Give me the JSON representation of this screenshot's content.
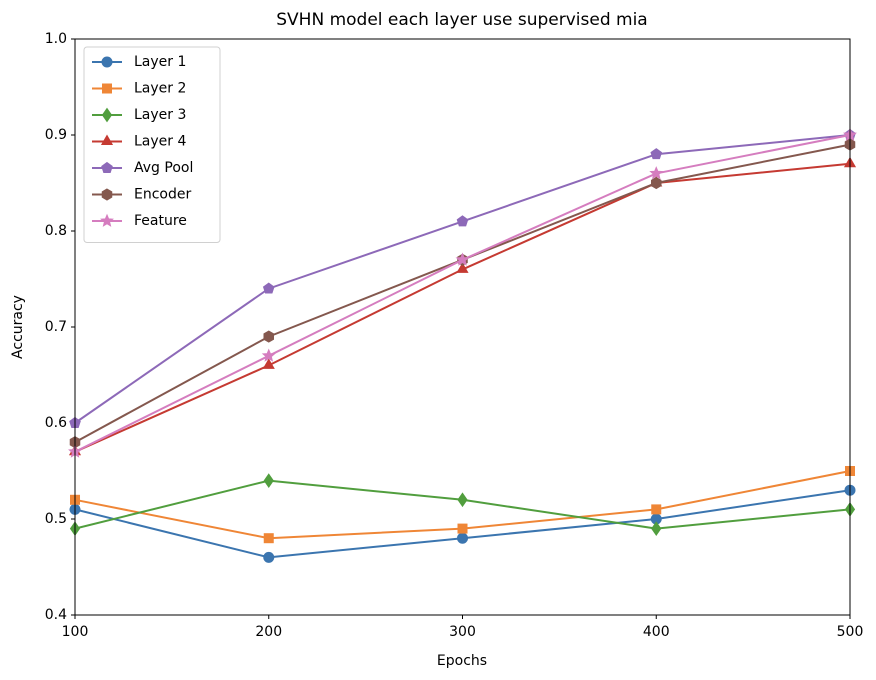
{
  "chart_data": {
    "type": "line",
    "title": "SVHN model each layer use supervised mia",
    "x_label": "Epochs",
    "y_label": "Accuracy",
    "x": [
      100,
      200,
      300,
      400,
      500
    ],
    "series": [
      {
        "name": "Layer 1",
        "color": "#3b75af",
        "marker": "circle",
        "values": [
          0.51,
          0.46,
          0.48,
          0.5,
          0.53
        ]
      },
      {
        "name": "Layer 2",
        "color": "#ef8636",
        "marker": "square",
        "values": [
          0.52,
          0.48,
          0.49,
          0.51,
          0.55
        ]
      },
      {
        "name": "Layer 3",
        "color": "#519e3e",
        "marker": "diamond",
        "values": [
          0.49,
          0.54,
          0.52,
          0.49,
          0.51
        ]
      },
      {
        "name": "Layer 4",
        "color": "#c53a32",
        "marker": "triangle",
        "values": [
          0.57,
          0.66,
          0.76,
          0.85,
          0.87
        ]
      },
      {
        "name": "Avg Pool",
        "color": "#8d69b8",
        "marker": "pentagon",
        "values": [
          0.6,
          0.74,
          0.81,
          0.88,
          0.9
        ]
      },
      {
        "name": "Encoder",
        "color": "#84584e",
        "marker": "hexagon",
        "values": [
          0.58,
          0.69,
          0.77,
          0.85,
          0.89
        ]
      },
      {
        "name": "Feature",
        "color": "#d57dbf",
        "marker": "star",
        "values": [
          0.57,
          0.67,
          0.77,
          0.86,
          0.9
        ]
      }
    ],
    "xlim": [
      100,
      500
    ],
    "xticks": [
      100,
      200,
      300,
      400,
      500
    ],
    "ylim": [
      0.4,
      1.0
    ],
    "yticks": [
      0.4,
      0.5,
      0.6,
      0.7,
      0.8,
      0.9,
      {
        "value": 1.0,
        "label": "1.0"
      }
    ],
    "grid": false,
    "legend": "upper left"
  }
}
